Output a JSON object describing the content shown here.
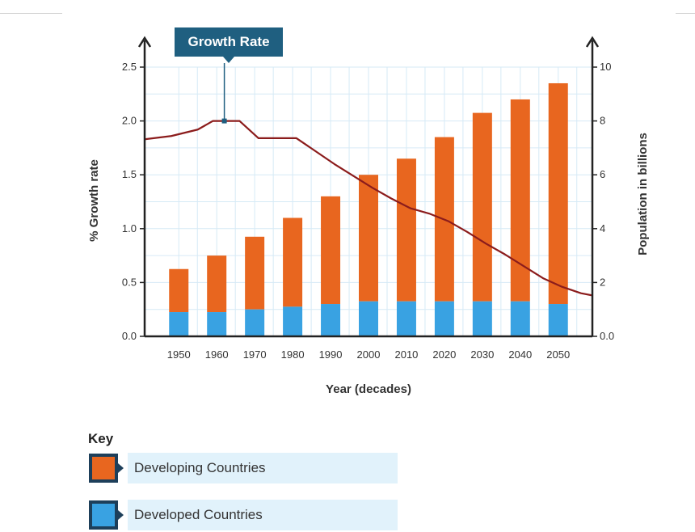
{
  "chart_data": {
    "type": "bar+line",
    "title": "",
    "xlabel": "Year (decades)",
    "ylabel_left": "% Growth rate",
    "ylabel_right": "Population in billions",
    "categories": [
      "1950",
      "1960",
      "1970",
      "1980",
      "1990",
      "2000",
      "2010",
      "2020",
      "2030",
      "2040",
      "2050"
    ],
    "y_left_ticks": [
      "0.0",
      "0.5",
      "1.0",
      "1.5",
      "2.0",
      "2.5"
    ],
    "y_left_range": [
      0,
      2.5
    ],
    "y_right_ticks": [
      "0.0",
      "2",
      "4",
      "6",
      "8",
      "10"
    ],
    "y_right_range": [
      0,
      10
    ],
    "grid": true,
    "bar_series": [
      {
        "name": "Developed Countries",
        "axis": "right",
        "stack_order": 0,
        "values": [
          0.9,
          0.9,
          1.0,
          1.1,
          1.2,
          1.3,
          1.3,
          1.3,
          1.3,
          1.3,
          1.2
        ]
      },
      {
        "name": "Developing Countries",
        "axis": "right",
        "stack_order": 1,
        "values": [
          1.6,
          2.1,
          2.7,
          3.3,
          4.0,
          4.7,
          5.3,
          6.1,
          7.0,
          7.5,
          8.2
        ]
      }
    ],
    "line_series": {
      "name": "Growth Rate",
      "axis": "left",
      "points": [
        [
          1941,
          1.83
        ],
        [
          1948,
          1.86
        ],
        [
          1955,
          1.92
        ],
        [
          1959,
          2.0
        ],
        [
          1962,
          2.0
        ],
        [
          1966,
          2.0
        ],
        [
          1971,
          1.84
        ],
        [
          1976,
          1.84
        ],
        [
          1981,
          1.84
        ],
        [
          1986,
          1.72
        ],
        [
          1991,
          1.6
        ],
        [
          1996,
          1.49
        ],
        [
          2001,
          1.38
        ],
        [
          2006,
          1.28
        ],
        [
          2011,
          1.19
        ],
        [
          2016,
          1.14
        ],
        [
          2021,
          1.07
        ],
        [
          2026,
          0.97
        ],
        [
          2031,
          0.86
        ],
        [
          2036,
          0.76
        ],
        [
          2041,
          0.65
        ],
        [
          2046,
          0.54
        ],
        [
          2051,
          0.46
        ],
        [
          2056,
          0.4
        ],
        [
          2059,
          0.38
        ]
      ],
      "x_range": [
        1941,
        2059
      ],
      "callout_at": 1962,
      "callout_label": "Growth Rate"
    },
    "colors": {
      "developing": "#e8661f",
      "developed": "#39a2e2",
      "line": "#8b1c1c",
      "grid": "#d6eaf6",
      "axis": "#222222",
      "callout": "#1f5f80"
    }
  },
  "legend": {
    "title": "Key",
    "items": [
      {
        "label": "Developing Countries",
        "color": "#e8661f"
      },
      {
        "label": "Developed Countries",
        "color": "#39a2e2"
      }
    ]
  }
}
